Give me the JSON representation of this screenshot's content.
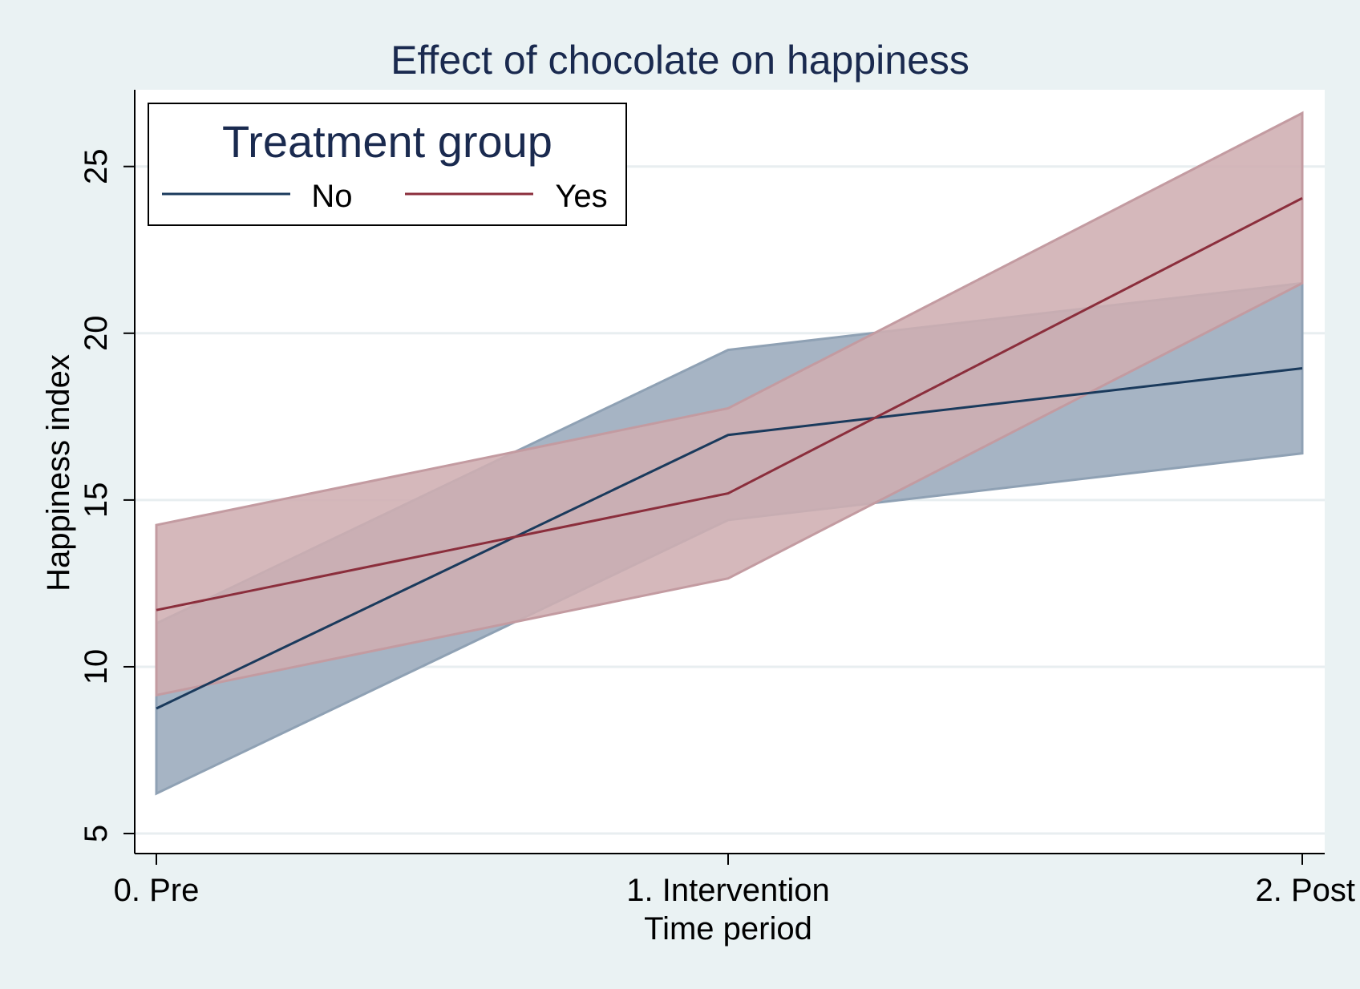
{
  "chart_data": {
    "type": "line",
    "title": "Effect of chocolate on happiness",
    "xlabel": "Time period",
    "ylabel": "Happiness index",
    "categories": [
      "0. Pre",
      "1. Intervention",
      "2. Post"
    ],
    "ylim": [
      4.4,
      27.3
    ],
    "yticks": [
      5,
      10,
      15,
      20,
      25
    ],
    "grid": true,
    "legend": {
      "title": "Treatment group",
      "placement": "top-left"
    },
    "series": [
      {
        "name": "No",
        "color": "#1a3a5c",
        "band_color": "#a6b4c4",
        "band_edge": "#8fa1b4",
        "values": [
          8.75,
          16.95,
          18.95
        ],
        "lower": [
          6.2,
          14.4,
          16.4
        ],
        "upper": [
          11.3,
          19.5,
          21.5
        ]
      },
      {
        "name": "Yes",
        "color": "#8b2e3c",
        "band_color": "#cfaeb2",
        "band_edge": "#c39ba1",
        "values": [
          11.7,
          15.2,
          24.05
        ],
        "lower": [
          9.15,
          12.65,
          21.5
        ],
        "upper": [
          14.25,
          17.75,
          26.6
        ]
      }
    ]
  }
}
